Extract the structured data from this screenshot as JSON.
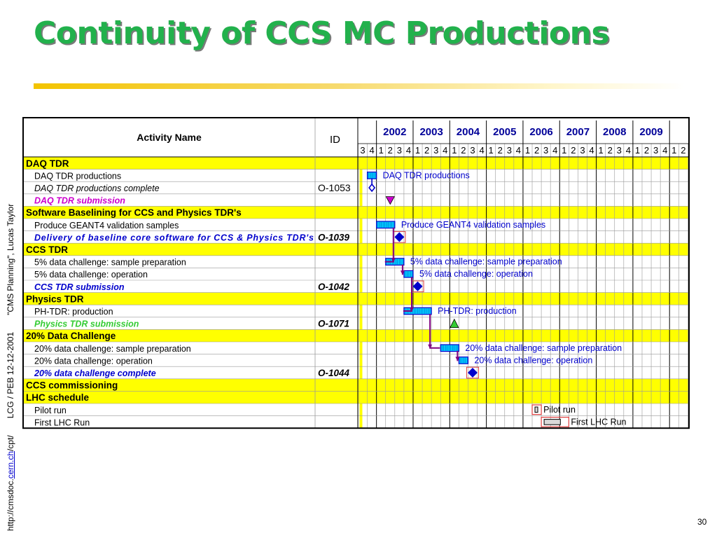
{
  "slide": {
    "title": "Continuity of CCS MC Productions",
    "side_parts": [
      "http://cmsdoc.",
      "cern.ch",
      "/cpt/",
      "LCG  / PEB  12-12-2001",
      "\"CMS Planning\",  Lucas Taylor"
    ],
    "slide_number": "30"
  },
  "colors": {
    "title_green": "#22b14c",
    "section_yellow": "#ffff00",
    "bar_cyan": "#00ccff",
    "bar_border": "#0000cc",
    "link_purple": "#800080",
    "milestone_blue": "#0000cc",
    "milestone_magenta": "#cc00cc",
    "milestone_green": "#33cc33",
    "year_text": "#000099",
    "label_blue": "#0000cc"
  },
  "chart_data": {
    "type": "gantt",
    "headers": {
      "activity": "Activity Name",
      "id": "ID"
    },
    "years": [
      "2002",
      "2003",
      "2004",
      "2005",
      "2006",
      "2007",
      "2008",
      "2009"
    ],
    "quarter_labels": [
      "3",
      "4",
      "1",
      "2",
      "3",
      "4",
      "1",
      "2",
      "3",
      "4",
      "1",
      "2",
      "3",
      "4",
      "1",
      "2",
      "3",
      "4",
      "1",
      "2",
      "3",
      "4",
      "1",
      "2",
      "3",
      "4",
      "1",
      "2",
      "3",
      "4",
      "1",
      "2",
      "3",
      "4",
      "1",
      "2"
    ],
    "rows": [
      {
        "name": "DAQ TDR",
        "id": "",
        "kind": "section"
      },
      {
        "name": "DAQ TDR productions",
        "id": "",
        "kind": "task",
        "start": [
          2001,
          4
        ],
        "end": [
          2001,
          4
        ],
        "label": "DAQ TDR productions"
      },
      {
        "name": "DAQ TDR productions complete",
        "id": "O-1053",
        "kind": "milestone-italic",
        "mark": "open-diamond",
        "at": [
          2001,
          4
        ]
      },
      {
        "name": "DAQ TDR submission",
        "id": "",
        "kind": "milestone-magenta",
        "mark": "down-triangle",
        "at": [
          2002,
          2
        ]
      },
      {
        "name": "Software Baselining for CCS and Physics TDR's",
        "id": "",
        "kind": "section"
      },
      {
        "name": "Produce GEANT4 validation samples",
        "id": "",
        "kind": "task",
        "start": [
          2002,
          1
        ],
        "end": [
          2002,
          2
        ],
        "label": "Produce GEANT4 validation samples"
      },
      {
        "name": "Delivery of baseline core software for CCS & Physics TDR's",
        "id": "O-1039",
        "kind": "milestone-blue",
        "mark": "diamond",
        "at": [
          2002,
          3
        ]
      },
      {
        "name": "CCS TDR",
        "id": "",
        "kind": "section"
      },
      {
        "name": "5% data challenge: sample preparation",
        "id": "",
        "kind": "task",
        "start": [
          2002,
          2
        ],
        "end": [
          2002,
          3
        ],
        "label": "5% data challenge: sample preparation"
      },
      {
        "name": "5% data challenge:  operation",
        "id": "",
        "kind": "task",
        "start": [
          2002,
          4
        ],
        "end": [
          2002,
          4
        ],
        "label": "5% data challenge:  operation"
      },
      {
        "name": "CCS TDR submission",
        "id": "O-1042",
        "kind": "milestone-blue",
        "mark": "diamond",
        "at": [
          2003,
          1
        ]
      },
      {
        "name": "Physics TDR",
        "id": "",
        "kind": "section"
      },
      {
        "name": "PH-TDR: production",
        "id": "",
        "kind": "task",
        "start": [
          2002,
          4
        ],
        "end": [
          2003,
          2
        ],
        "label": "PH-TDR: production"
      },
      {
        "name": "Physics TDR submission",
        "id": "O-1071",
        "kind": "milestone-green",
        "mark": "up-triangle",
        "at": [
          2004,
          1
        ]
      },
      {
        "name": "20% Data Challenge",
        "id": "",
        "kind": "section"
      },
      {
        "name": "20% data challenge: sample preparation",
        "id": "",
        "kind": "task",
        "start": [
          2003,
          4
        ],
        "end": [
          2004,
          1
        ],
        "label": "20% data challenge: sample preparation"
      },
      {
        "name": "20% data challenge:  operation",
        "id": "",
        "kind": "task",
        "start": [
          2004,
          2
        ],
        "end": [
          2004,
          2
        ],
        "label": "20% data challenge:  operation"
      },
      {
        "name": "20%  data challenge complete",
        "id": "O-1044",
        "kind": "milestone-blue",
        "mark": "diamond",
        "at": [
          2004,
          3
        ]
      },
      {
        "name": "CCS commissioning",
        "id": "",
        "kind": "section"
      },
      {
        "name": "LHC schedule",
        "id": "",
        "kind": "section"
      },
      {
        "name": "Pilot run",
        "id": "",
        "kind": "task-outline",
        "start": [
          2006,
          2
        ],
        "end": [
          2006,
          2
        ],
        "label": "Pilot run"
      },
      {
        "name": "First LHC Run",
        "id": "",
        "kind": "task-outline",
        "start": [
          2006,
          3
        ],
        "end": [
          2007,
          1
        ],
        "label": "First LHC Run"
      }
    ],
    "dependencies": [
      {
        "from_row": 5,
        "to_row": 8
      },
      {
        "from_row": 8,
        "to_row": 9
      },
      {
        "from_row": 9,
        "to_row": 12
      },
      {
        "from_row": 12,
        "to_row": 15
      },
      {
        "from_row": 15,
        "to_row": 16
      }
    ]
  }
}
